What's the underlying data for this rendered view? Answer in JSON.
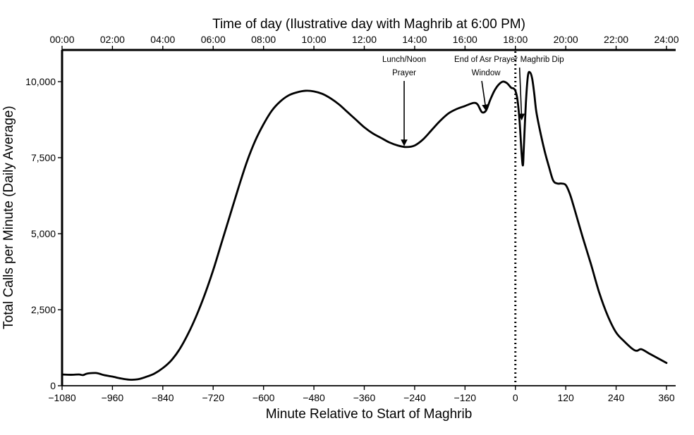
{
  "chart_data": {
    "type": "line",
    "xlabel": "Minute Relative to Start of Maghrib",
    "ylabel": "Total Calls per Minute (Daily Average)",
    "top_axis_label": "Time of day (Ilustrative day with Maghrib at 6:00 PM)",
    "xlim": [
      -1080,
      370
    ],
    "ylim": [
      0,
      10800
    ],
    "x_ticks": [
      -1080,
      -960,
      -840,
      -720,
      -600,
      -480,
      -360,
      -240,
      -120,
      0,
      120,
      240,
      360
    ],
    "x_tick_labels": [
      "−1080",
      "−960",
      "−840",
      "−720",
      "−600",
      "−480",
      "−360",
      "−240",
      "−120",
      "0",
      "120",
      "240",
      "360"
    ],
    "y_ticks": [
      0,
      2500,
      5000,
      7500,
      10000
    ],
    "y_tick_labels": [
      "0",
      "2,500",
      "5,000",
      "7,500",
      "10,000"
    ],
    "top_ticks": [
      -1080,
      -960,
      -840,
      -720,
      -600,
      -480,
      -360,
      -240,
      -120,
      0,
      120,
      240,
      360
    ],
    "top_tick_labels": [
      "00:00",
      "02:00",
      "04:00",
      "06:00",
      "08:00",
      "10:00",
      "12:00",
      "14:00",
      "16:00",
      "18:00",
      "20:00",
      "22:00",
      "24:00"
    ],
    "reference_line_x": 0,
    "grid": false,
    "series": [
      {
        "x": [
          -1080,
          -1060,
          -1040,
          -1030,
          -1020,
          -1000,
          -990,
          -980,
          -960,
          -940,
          -920,
          -900,
          -880,
          -860,
          -840,
          -820,
          -800,
          -780,
          -760,
          -740,
          -720,
          -700,
          -680,
          -660,
          -640,
          -620,
          -600,
          -580,
          -560,
          -540,
          -520,
          -500,
          -480,
          -460,
          -440,
          -420,
          -400,
          -380,
          -360,
          -340,
          -320,
          -300,
          -280,
          -260,
          -240,
          -220,
          -200,
          -180,
          -160,
          -140,
          -120,
          -100,
          -90,
          -80,
          -70,
          -60,
          -50,
          -40,
          -30,
          -20,
          -10,
          -5,
          0,
          5,
          10,
          15,
          18,
          20,
          25,
          30,
          35,
          40,
          45,
          50,
          60,
          70,
          80,
          90,
          100,
          110,
          120,
          130,
          140,
          160,
          180,
          200,
          220,
          240,
          260,
          280,
          290,
          300,
          320,
          340,
          360
        ],
        "y": [
          370,
          360,
          370,
          350,
          400,
          420,
          390,
          350,
          300,
          240,
          200,
          210,
          290,
          400,
          580,
          830,
          1200,
          1700,
          2300,
          3000,
          3800,
          4700,
          5600,
          6500,
          7350,
          8050,
          8600,
          9050,
          9350,
          9550,
          9650,
          9700,
          9680,
          9600,
          9450,
          9250,
          9000,
          8750,
          8500,
          8300,
          8150,
          8000,
          7900,
          7850,
          7900,
          8100,
          8400,
          8700,
          8950,
          9100,
          9200,
          9300,
          9250,
          9000,
          9050,
          9400,
          9700,
          9900,
          10000,
          9950,
          9800,
          9780,
          9700,
          9400,
          8700,
          7600,
          7250,
          7800,
          9300,
          10200,
          10300,
          10100,
          9600,
          9000,
          8300,
          7700,
          7200,
          6750,
          6650,
          6650,
          6600,
          6300,
          5850,
          4900,
          4000,
          3050,
          2300,
          1750,
          1450,
          1200,
          1150,
          1200,
          1050,
          900,
          750
        ]
      }
    ],
    "annotations": [
      {
        "lines": [
          "Lunch/Noon",
          "Prayer"
        ],
        "x": -265,
        "y": 7850
      },
      {
        "lines": [
          "End of Asr Prayer",
          "Window"
        ],
        "x": -70,
        "y": 9000
      },
      {
        "lines": [
          "Maghrib Dip"
        ],
        "x": 15,
        "y": 8700
      }
    ]
  }
}
